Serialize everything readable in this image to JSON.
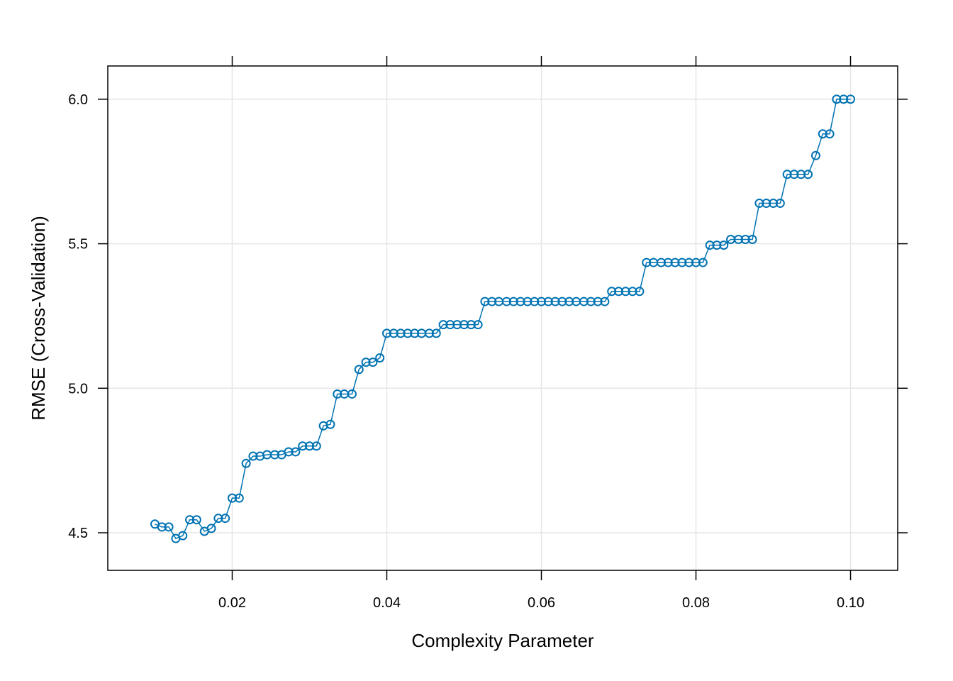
{
  "chart_data": {
    "type": "line",
    "title": "",
    "xlabel": "Complexity Parameter",
    "ylabel": "RMSE (Cross-Validation)",
    "xlim": [
      0.0039,
      0.1061
    ],
    "ylim": [
      4.37,
      6.115
    ],
    "xticks": [
      0.02,
      0.04,
      0.06,
      0.08,
      0.1
    ],
    "xtick_labels": [
      "0.02",
      "0.04",
      "0.06",
      "0.08",
      "0.10"
    ],
    "yticks": [
      4.5,
      5.0,
      5.5,
      6.0
    ],
    "ytick_labels": [
      "4.5",
      "5.0",
      "5.5",
      "6.0"
    ],
    "grid": true,
    "legend": "none",
    "colors": {
      "series": "#0072B2",
      "grid": "#e6e6e6",
      "axis": "#000000"
    },
    "series": [
      {
        "x": [
          0.01,
          0.0109,
          0.0118,
          0.0127,
          0.0136,
          0.0145,
          0.0154,
          0.0164,
          0.0173,
          0.0182,
          0.0191,
          0.02,
          0.0209,
          0.0218,
          0.0227,
          0.0236,
          0.0245,
          0.0255,
          0.0264,
          0.0273,
          0.0282,
          0.0291,
          0.03,
          0.0309,
          0.0318,
          0.0327,
          0.0336,
          0.0345,
          0.0355,
          0.0364,
          0.0373,
          0.0382,
          0.0391,
          0.04,
          0.0409,
          0.0418,
          0.0427,
          0.0436,
          0.0445,
          0.0455,
          0.0464,
          0.0473,
          0.0482,
          0.0491,
          0.05,
          0.0509,
          0.0518,
          0.0527,
          0.0536,
          0.0545,
          0.0555,
          0.0564,
          0.0573,
          0.0582,
          0.0591,
          0.06,
          0.0609,
          0.0618,
          0.0627,
          0.0636,
          0.0645,
          0.0655,
          0.0664,
          0.0673,
          0.0682,
          0.0691,
          0.07,
          0.0709,
          0.0718,
          0.0727,
          0.0736,
          0.0745,
          0.0755,
          0.0764,
          0.0773,
          0.0782,
          0.0791,
          0.08,
          0.0809,
          0.0818,
          0.0827,
          0.0836,
          0.0845,
          0.0855,
          0.0864,
          0.0873,
          0.0882,
          0.0891,
          0.09,
          0.0909,
          0.0918,
          0.0927,
          0.0936,
          0.0945,
          0.0955,
          0.0964,
          0.0973,
          0.0982,
          0.0991,
          0.1
        ],
        "y": [
          4.53,
          4.52,
          4.52,
          4.48,
          4.49,
          4.545,
          4.545,
          4.505,
          4.515,
          4.55,
          4.55,
          4.62,
          4.62,
          4.74,
          4.765,
          4.765,
          4.77,
          4.77,
          4.77,
          4.78,
          4.78,
          4.8,
          4.8,
          4.8,
          4.87,
          4.875,
          4.98,
          4.98,
          4.98,
          5.065,
          5.09,
          5.09,
          5.105,
          5.19,
          5.19,
          5.19,
          5.19,
          5.19,
          5.19,
          5.19,
          5.19,
          5.22,
          5.22,
          5.22,
          5.22,
          5.22,
          5.22,
          5.3,
          5.3,
          5.3,
          5.3,
          5.3,
          5.3,
          5.3,
          5.3,
          5.3,
          5.3,
          5.3,
          5.3,
          5.3,
          5.3,
          5.3,
          5.3,
          5.3,
          5.3,
          5.335,
          5.335,
          5.335,
          5.335,
          5.335,
          5.435,
          5.435,
          5.435,
          5.435,
          5.435,
          5.435,
          5.435,
          5.435,
          5.435,
          5.495,
          5.495,
          5.495,
          5.515,
          5.515,
          5.515,
          5.515,
          5.64,
          5.64,
          5.64,
          5.64,
          5.74,
          5.74,
          5.74,
          5.74,
          5.805,
          5.88,
          5.88,
          6.0,
          6.0,
          6.0
        ]
      }
    ]
  }
}
